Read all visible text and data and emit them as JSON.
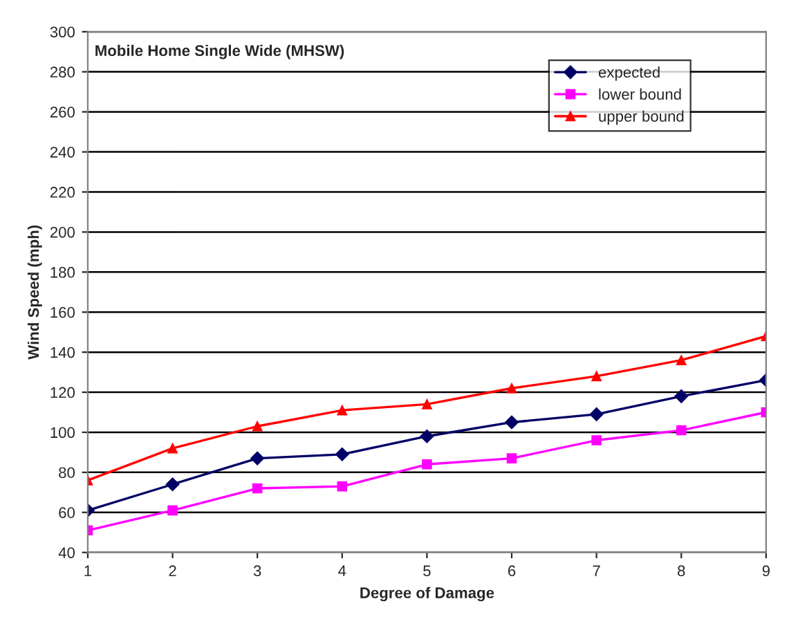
{
  "chart_data": {
    "type": "line",
    "title": "Mobile Home Single Wide (MHSW)",
    "xlabel": "Degree of Damage",
    "ylabel": "Wind Speed (mph)",
    "x": [
      1,
      2,
      3,
      4,
      5,
      6,
      7,
      8,
      9
    ],
    "series": [
      {
        "name": "expected",
        "color": "#000066",
        "marker": "diamond",
        "values": [
          61,
          74,
          87,
          89,
          98,
          105,
          109,
          118,
          126
        ]
      },
      {
        "name": "lower bound",
        "color": "#ff00ff",
        "marker": "square",
        "values": [
          51,
          61,
          72,
          73,
          84,
          87,
          96,
          101,
          110
        ]
      },
      {
        "name": "upper bound",
        "color": "#ff0000",
        "marker": "triangle",
        "values": [
          76,
          92,
          103,
          111,
          114,
          122,
          128,
          136,
          148
        ]
      }
    ],
    "xlim": [
      1,
      9
    ],
    "xticks": [
      1,
      2,
      3,
      4,
      5,
      6,
      7,
      8,
      9
    ],
    "ylim": [
      40,
      300
    ],
    "yticks": [
      40,
      60,
      80,
      100,
      120,
      140,
      160,
      180,
      200,
      220,
      240,
      260,
      280,
      300
    ],
    "grid": "y",
    "legend": "top right",
    "line_style": "solid"
  }
}
